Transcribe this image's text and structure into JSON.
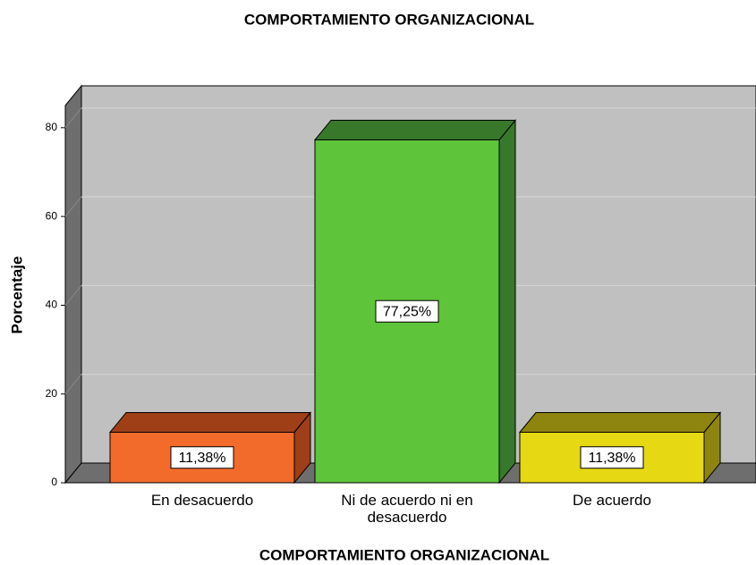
{
  "chart_data": {
    "type": "bar3d",
    "title": "COMPORTAMIENTO ORGANIZACIONAL",
    "x_label": "COMPORTAMIENTO ORGANIZACIONAL",
    "y_label": "Porcentaje",
    "categories": [
      "En desacuerdo",
      "Ni de acuerdo ni en desacuerdo",
      "De acuerdo"
    ],
    "values": [
      11.38,
      77.25,
      11.38
    ],
    "value_labels": [
      "11,38%",
      "77,25%",
      "11,38%"
    ],
    "colors": [
      "#f26b2b",
      "#5ec43a",
      "#e6d812"
    ],
    "shade_colors": [
      "#9e3f18",
      "#38782a",
      "#8e8410"
    ],
    "ylim": [
      0,
      85
    ],
    "yticks": [
      0,
      20,
      40,
      60,
      80
    ],
    "grid": true
  }
}
